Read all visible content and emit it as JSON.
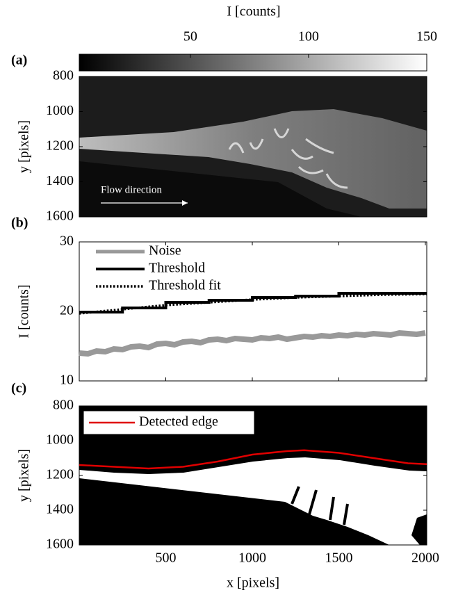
{
  "chart_data": [
    {
      "type": "image",
      "panel_label": "(a)",
      "colorbar_label": "I [counts]",
      "clim": [
        3,
        150
      ],
      "cticks": [
        50,
        100,
        150
      ],
      "ylabel": "y [pixels]",
      "ylim": [
        800,
        1600
      ],
      "y_reversed": true,
      "yticks": [
        800,
        1000,
        1200,
        1400,
        1600
      ],
      "annotation": "Flow direction"
    },
    {
      "type": "line",
      "panel_label": "(b)",
      "ylabel": "I [counts]",
      "ylim": [
        10,
        30
      ],
      "yticks": [
        10,
        20,
        30
      ],
      "xlim": [
        0,
        2008
      ],
      "xticks": [
        500,
        1000,
        1500,
        2000
      ],
      "legend": "upper left",
      "series": [
        {
          "name": "Noise",
          "color": "#999999",
          "linestyle": "solid",
          "x": [
            0,
            50,
            100,
            150,
            200,
            250,
            300,
            350,
            400,
            450,
            500,
            550,
            600,
            650,
            700,
            750,
            800,
            850,
            900,
            950,
            1000,
            1050,
            1100,
            1150,
            1200,
            1250,
            1300,
            1350,
            1400,
            1450,
            1500,
            1550,
            1600,
            1650,
            1700,
            1750,
            1800,
            1850,
            1900,
            1950,
            2000
          ],
          "values": [
            14.0,
            13.9,
            14.3,
            14.2,
            14.6,
            14.5,
            14.9,
            15.0,
            14.8,
            15.3,
            15.4,
            15.2,
            15.6,
            15.7,
            15.5,
            15.9,
            16.0,
            15.8,
            16.1,
            16.0,
            15.9,
            16.2,
            16.1,
            16.3,
            16.0,
            16.2,
            16.4,
            16.3,
            16.5,
            16.4,
            16.6,
            16.5,
            16.7,
            16.6,
            16.8,
            16.7,
            16.6,
            16.9,
            16.8,
            16.7,
            16.9
          ]
        },
        {
          "name": "Threshold",
          "color": "#000000",
          "linestyle": "solid",
          "x": [
            0,
            250,
            250,
            500,
            500,
            750,
            750,
            1000,
            1000,
            1250,
            1250,
            1500,
            1500,
            2008
          ],
          "values": [
            19.9,
            19.9,
            20.5,
            20.5,
            21.3,
            21.3,
            21.6,
            21.6,
            22.0,
            22.0,
            22.2,
            22.2,
            22.6,
            22.6
          ]
        },
        {
          "name": "Threshold fit",
          "color": "#000000",
          "linestyle": "dotted",
          "x": [
            0,
            250,
            500,
            750,
            1000,
            1250,
            1500,
            1750,
            2008
          ],
          "values": [
            19.7,
            20.3,
            20.9,
            21.3,
            21.7,
            22.0,
            22.2,
            22.4,
            22.5
          ]
        }
      ]
    },
    {
      "type": "line",
      "panel_label": "(c)",
      "xlabel": "x [pixels]",
      "ylabel": "y [pixels]",
      "ylim": [
        800,
        1600
      ],
      "y_reversed": true,
      "yticks": [
        800,
        1000,
        1200,
        1400,
        1600
      ],
      "xlim": [
        0,
        2008
      ],
      "xticks": [
        500,
        1000,
        1500,
        2000
      ],
      "legend": "upper left",
      "series": [
        {
          "name": "Detected edge",
          "color": "#e00000",
          "linestyle": "solid",
          "x": [
            0,
            200,
            400,
            600,
            800,
            1000,
            1200,
            1300,
            1500,
            1700,
            1900,
            2008
          ],
          "values": [
            1140,
            1150,
            1160,
            1150,
            1120,
            1080,
            1060,
            1055,
            1070,
            1100,
            1130,
            1135
          ]
        }
      ]
    }
  ]
}
